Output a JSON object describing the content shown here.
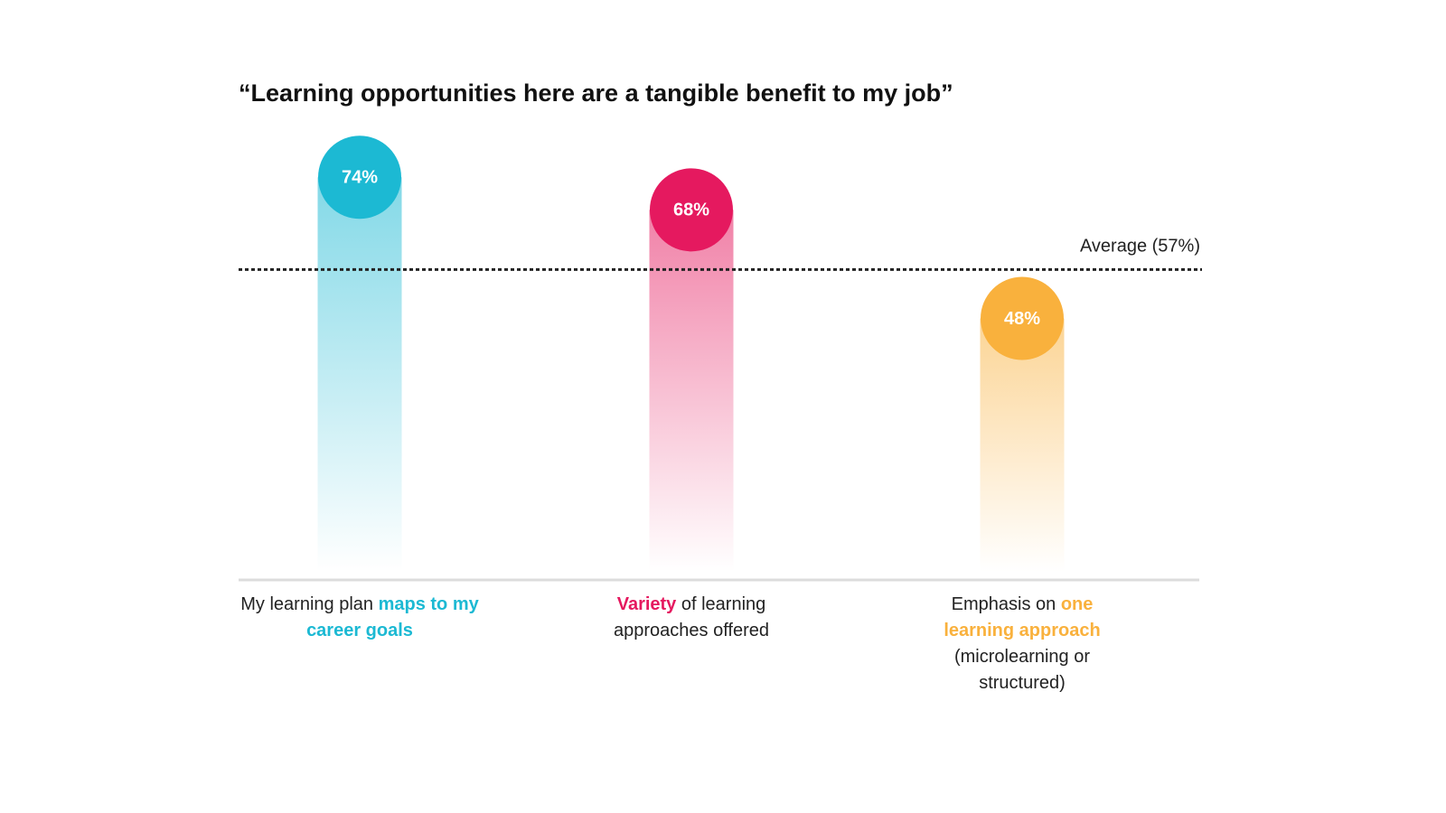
{
  "chart_data": {
    "type": "bar",
    "title": "“Learning opportunities here are a tangible benefit to my job”",
    "categories": [
      [
        {
          "text": "My learning plan",
          "highlight": false
        },
        {
          "text": "maps to my career goals",
          "highlight": true
        }
      ],
      [
        {
          "text": "Variety",
          "highlight": true
        },
        {
          "text": "of learning approaches offered",
          "highlight": false
        }
      ],
      [
        {
          "text": "Emphasis on",
          "highlight": false
        },
        {
          "text": "one learning approach",
          "highlight": true
        },
        {
          "text": "(microlearning or structured)",
          "highlight": false
        }
      ]
    ],
    "values": [
      74,
      68,
      48
    ],
    "value_labels": [
      "74%",
      "68%",
      "48%"
    ],
    "colors": [
      "#1cb9d3",
      "#e5195f",
      "#f9b13d"
    ],
    "average": 57,
    "average_label": "Average (57%)",
    "ylim": [
      0,
      100
    ]
  }
}
